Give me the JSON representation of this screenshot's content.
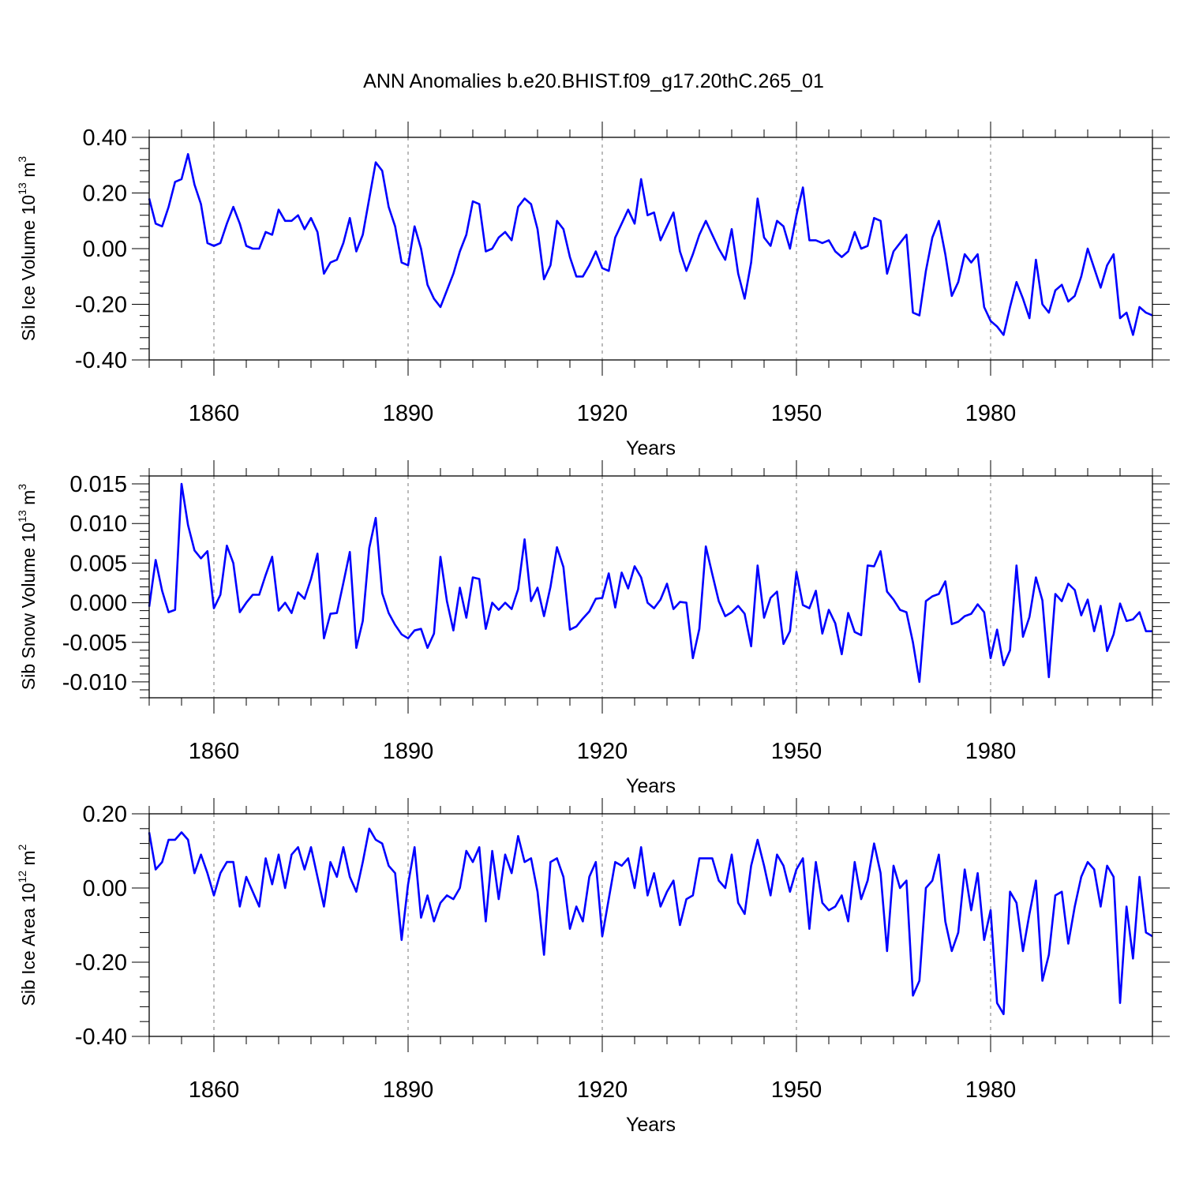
{
  "title": "ANN Anomalies b.e20.BHIST.f09_g17.20thC.265_01",
  "colors": {
    "series": "#0000ff",
    "grid": "#777777",
    "axis": "#000000"
  },
  "chart_data": [
    {
      "type": "line",
      "name": "sib-ice-volume",
      "title": "ANN Anomalies b.e20.BHIST.f09_g17.20thC.265_01",
      "ylabel": {
        "main": "Sib Ice Volume 10",
        "sup_exp": "13",
        "unit": " m",
        "sup_unit": "3"
      },
      "xlabel": "Years",
      "xlim": [
        1850,
        2005
      ],
      "ylim": [
        -0.4,
        0.4
      ],
      "xticks": [
        1860,
        1890,
        1920,
        1950,
        1980
      ],
      "xtick_labels": [
        "1860",
        "1890",
        "1920",
        "1950",
        "1980"
      ],
      "yticks": [
        -0.4,
        -0.2,
        0.0,
        0.2,
        0.4
      ],
      "ytick_labels": [
        "-0.40",
        "-0.20",
        "0.00",
        "0.20",
        "0.40"
      ],
      "grid": "vertical dashed at major x ticks",
      "x_start": 1850,
      "values": [
        0.18,
        0.09,
        0.08,
        0.15,
        0.24,
        0.25,
        0.34,
        0.23,
        0.16,
        0.02,
        0.01,
        0.02,
        0.09,
        0.15,
        0.09,
        0.01,
        0.0,
        0.0,
        0.06,
        0.05,
        0.14,
        0.1,
        0.1,
        0.12,
        0.07,
        0.11,
        0.06,
        -0.09,
        -0.05,
        -0.04,
        0.02,
        0.11,
        -0.01,
        0.05,
        0.18,
        0.31,
        0.28,
        0.15,
        0.08,
        -0.05,
        -0.06,
        0.08,
        0.0,
        -0.13,
        -0.18,
        -0.21,
        -0.15,
        -0.09,
        -0.01,
        0.05,
        0.17,
        0.16,
        -0.01,
        0.0,
        0.04,
        0.06,
        0.03,
        0.15,
        0.18,
        0.16,
        0.07,
        -0.11,
        -0.06,
        0.1,
        0.07,
        -0.03,
        -0.1,
        -0.1,
        -0.06,
        -0.01,
        -0.07,
        -0.08,
        0.04,
        0.09,
        0.14,
        0.09,
        0.25,
        0.12,
        0.13,
        0.03,
        0.08,
        0.13,
        -0.01,
        -0.08,
        -0.02,
        0.05,
        0.1,
        0.05,
        0.0,
        -0.04,
        0.07,
        -0.09,
        -0.18,
        -0.05,
        0.18,
        0.04,
        0.01,
        0.1,
        0.08,
        0.0,
        0.12,
        0.22,
        0.03,
        0.03,
        0.02,
        0.03,
        -0.01,
        -0.03,
        -0.01,
        0.06,
        0.0,
        0.01,
        0.11,
        0.1,
        -0.09,
        -0.01,
        0.02,
        0.05,
        -0.23,
        -0.24,
        -0.08,
        0.04,
        0.1,
        -0.02,
        -0.17,
        -0.12,
        -0.02,
        -0.05,
        -0.02,
        -0.21,
        -0.26,
        -0.28,
        -0.31,
        -0.21,
        -0.12,
        -0.18,
        -0.25,
        -0.04,
        -0.2,
        -0.23,
        -0.15,
        -0.13,
        -0.19,
        -0.17,
        -0.1,
        0.0,
        -0.07,
        -0.14,
        -0.06,
        -0.02,
        -0.25,
        -0.23,
        -0.31,
        -0.21,
        -0.23,
        -0.24
      ]
    },
    {
      "type": "line",
      "name": "sib-snow-volume",
      "ylabel": {
        "main": "Sib Snow Volume 10",
        "sup_exp": "13",
        "unit": " m",
        "sup_unit": "3"
      },
      "xlabel": "Years",
      "xlim": [
        1850,
        2005
      ],
      "ylim": [
        -0.012,
        0.016
      ],
      "xticks": [
        1860,
        1890,
        1920,
        1950,
        1980
      ],
      "xtick_labels": [
        "1860",
        "1890",
        "1920",
        "1950",
        "1980"
      ],
      "yticks": [
        -0.01,
        -0.005,
        0.0,
        0.005,
        0.01,
        0.015
      ],
      "ytick_labels": [
        "-0.010",
        "-0.005",
        "0.000",
        "0.005",
        "0.010",
        "0.015"
      ],
      "grid": "vertical dashed at major x ticks",
      "x_start": 1850,
      "values": [
        -0.0005,
        0.0054,
        0.0015,
        -0.0012,
        -0.0009,
        0.015,
        0.0098,
        0.0066,
        0.0056,
        0.0065,
        -0.0007,
        0.001,
        0.0072,
        0.005,
        -0.0012,
        0.0,
        0.001,
        0.001,
        0.0035,
        0.0058,
        -0.001,
        0.0,
        -0.0013,
        0.0013,
        0.0005,
        0.003,
        0.0062,
        -0.0045,
        -0.0014,
        -0.0013,
        0.0025,
        0.0064,
        -0.0057,
        -0.0023,
        0.0069,
        0.0107,
        0.0012,
        -0.0013,
        -0.0028,
        -0.004,
        -0.0045,
        -0.0035,
        -0.0033,
        -0.0057,
        -0.0039,
        0.0058,
        0.0002,
        -0.0035,
        0.0019,
        -0.0019,
        0.0032,
        0.003,
        -0.0033,
        0.0,
        -0.0009,
        0.0,
        -0.0008,
        0.0017,
        0.008,
        0.0002,
        0.0019,
        -0.0017,
        0.002,
        0.007,
        0.0045,
        -0.0034,
        -0.003,
        -0.002,
        -0.0011,
        0.0005,
        0.0006,
        0.0037,
        -0.0006,
        0.0038,
        0.0018,
        0.0046,
        0.0032,
        0.0,
        -0.0007,
        0.0004,
        0.0024,
        -0.0008,
        0.0001,
        0.0,
        -0.007,
        -0.0033,
        0.0071,
        0.0036,
        0.0002,
        -0.0017,
        -0.0012,
        -0.0004,
        -0.0014,
        -0.0055,
        0.0047,
        -0.0019,
        0.0006,
        0.0014,
        -0.0052,
        -0.0036,
        0.0039,
        -0.0003,
        -0.0007,
        0.0015,
        -0.0039,
        -0.0009,
        -0.0026,
        -0.0065,
        -0.0013,
        -0.0037,
        -0.0041,
        0.0047,
        0.0046,
        0.0065,
        0.0014,
        0.0004,
        -0.0009,
        -0.0012,
        -0.005,
        -0.01,
        0.0002,
        0.0008,
        0.0011,
        0.0027,
        -0.0027,
        -0.0024,
        -0.0017,
        -0.0014,
        -0.0002,
        -0.0012,
        -0.007,
        -0.0034,
        -0.0079,
        -0.006,
        0.0047,
        -0.0043,
        -0.0018,
        0.0032,
        0.0003,
        -0.0094,
        0.0011,
        0.0002,
        0.0024,
        0.0016,
        -0.0016,
        0.0004,
        -0.0036,
        -0.0004,
        -0.0061,
        -0.004,
        -0.0001,
        -0.0023,
        -0.0021,
        -0.0012,
        -0.0036,
        -0.0036
      ]
    },
    {
      "type": "line",
      "name": "sib-ice-area",
      "ylabel": {
        "main": "Sib Ice Area 10",
        "sup_exp": "12",
        "unit": " m",
        "sup_unit": "2"
      },
      "xlabel": "Years",
      "xlim": [
        1850,
        2005
      ],
      "ylim": [
        -0.4,
        0.2
      ],
      "xticks": [
        1860,
        1890,
        1920,
        1950,
        1980
      ],
      "xtick_labels": [
        "1860",
        "1890",
        "1920",
        "1950",
        "1980"
      ],
      "yticks": [
        -0.4,
        -0.2,
        0.0,
        0.2
      ],
      "ytick_labels": [
        "-0.40",
        "-0.20",
        "0.00",
        "0.20"
      ],
      "grid": "vertical dashed at major x ticks",
      "x_start": 1850,
      "values": [
        0.15,
        0.05,
        0.07,
        0.13,
        0.13,
        0.15,
        0.13,
        0.04,
        0.09,
        0.04,
        -0.02,
        0.04,
        0.07,
        0.07,
        -0.05,
        0.03,
        -0.01,
        -0.05,
        0.08,
        0.01,
        0.09,
        0.0,
        0.09,
        0.11,
        0.05,
        0.11,
        0.03,
        -0.05,
        0.07,
        0.03,
        0.11,
        0.03,
        -0.01,
        0.07,
        0.16,
        0.13,
        0.12,
        0.06,
        0.04,
        -0.14,
        0.01,
        0.11,
        -0.08,
        -0.02,
        -0.09,
        -0.04,
        -0.02,
        -0.03,
        0.0,
        0.1,
        0.07,
        0.11,
        -0.09,
        0.1,
        -0.03,
        0.09,
        0.04,
        0.14,
        0.07,
        0.08,
        -0.01,
        -0.18,
        0.07,
        0.08,
        0.03,
        -0.11,
        -0.05,
        -0.09,
        0.03,
        0.07,
        -0.13,
        -0.03,
        0.07,
        0.06,
        0.08,
        0.0,
        0.11,
        -0.02,
        0.04,
        -0.05,
        -0.01,
        0.02,
        -0.1,
        -0.03,
        -0.02,
        0.08,
        0.08,
        0.08,
        0.02,
        0.0,
        0.09,
        -0.04,
        -0.07,
        0.06,
        0.13,
        0.06,
        -0.02,
        0.09,
        0.06,
        -0.01,
        0.05,
        0.08,
        -0.11,
        0.07,
        -0.04,
        -0.06,
        -0.05,
        -0.02,
        -0.09,
        0.07,
        -0.03,
        0.02,
        0.12,
        0.04,
        -0.17,
        0.06,
        0.0,
        0.02,
        -0.29,
        -0.25,
        0.0,
        0.02,
        0.09,
        -0.09,
        -0.17,
        -0.12,
        0.05,
        -0.06,
        0.04,
        -0.14,
        -0.06,
        -0.31,
        -0.34,
        -0.01,
        -0.04,
        -0.17,
        -0.07,
        0.02,
        -0.25,
        -0.18,
        -0.02,
        -0.01,
        -0.15,
        -0.05,
        0.03,
        0.07,
        0.05,
        -0.05,
        0.06,
        0.03,
        -0.31,
        -0.05,
        -0.19,
        0.03,
        -0.12,
        -0.13
      ]
    }
  ]
}
